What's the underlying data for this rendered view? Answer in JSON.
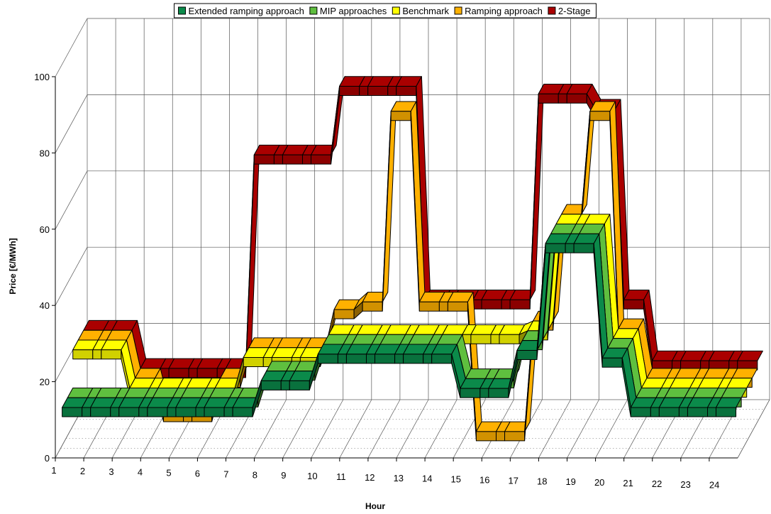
{
  "chart_data": {
    "type": "line",
    "style": "3d-ribbon",
    "title": "",
    "xlabel": "Hour",
    "ylabel": "Price [€/MWh]",
    "ylim": [
      0,
      100
    ],
    "yticks": [
      "0",
      "20",
      "40",
      "60",
      "80",
      "100"
    ],
    "categories": [
      "1",
      "2",
      "3",
      "4",
      "5",
      "6",
      "7",
      "8",
      "9",
      "10",
      "11",
      "12",
      "13",
      "14",
      "15",
      "16",
      "17",
      "18",
      "19",
      "20",
      "21",
      "22",
      "23",
      "24"
    ],
    "legend_position": "top-center",
    "grid": true,
    "series": [
      {
        "name": "Extended ramping approach",
        "color": "#0b8a4a",
        "values": [
          12,
          12,
          12,
          12,
          12,
          12,
          12,
          19,
          19,
          26,
          26,
          26,
          26,
          26,
          17,
          17,
          27,
          55,
          55,
          25,
          12,
          12,
          12,
          12
        ]
      },
      {
        "name": "MIP approaches",
        "color": "#5fbf3f",
        "values": [
          12,
          12,
          12,
          12,
          12,
          12,
          12,
          19,
          19,
          26,
          26,
          26,
          26,
          26,
          17,
          17,
          27,
          55,
          55,
          25,
          12,
          12,
          12,
          12
        ]
      },
      {
        "name": "Benchmark",
        "color": "#ffff00",
        "values": [
          22,
          22,
          12,
          12,
          12,
          12,
          20,
          20,
          20,
          26,
          26,
          26,
          26,
          26,
          26,
          26,
          27,
          55,
          55,
          25,
          12,
          12,
          12,
          12
        ]
      },
      {
        "name": "Ramping approach",
        "color": "#ffb100",
        "values": [
          22,
          22,
          12,
          3,
          3,
          12,
          20,
          20,
          20,
          30,
          32,
          82,
          32,
          32,
          -2,
          -2,
          27,
          55,
          82,
          25,
          12,
          12,
          12,
          12
        ]
      },
      {
        "name": "2-Stage",
        "color": "#aa0000",
        "values": [
          22,
          22,
          12,
          12,
          12,
          12,
          68,
          68,
          68,
          86,
          86,
          86,
          30,
          30,
          30,
          30,
          84,
          84,
          80,
          30,
          14,
          14,
          14,
          14
        ]
      }
    ]
  }
}
